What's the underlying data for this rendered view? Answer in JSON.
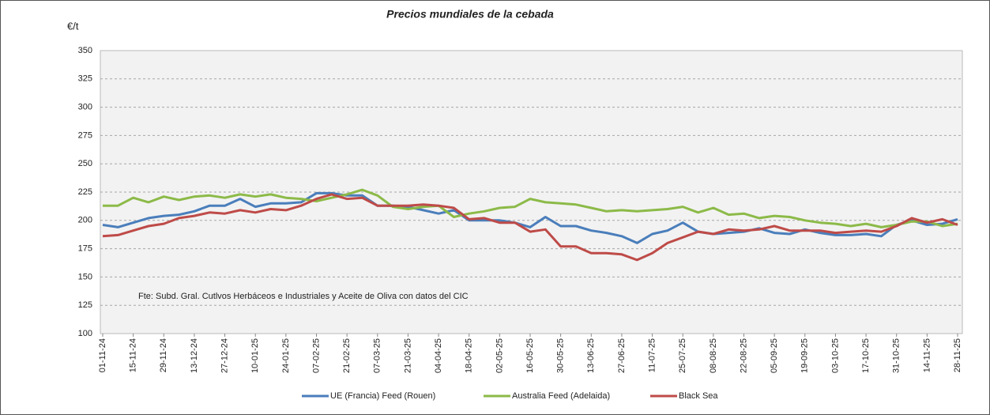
{
  "chart_data": {
    "type": "line",
    "title": "Precios mundiales de la cebada",
    "y_label": "€/t",
    "annotation": "Fte: Subd. Gral. Cutlvos Herbáceos e Industriales y Aceite de Oliva con datos del CIC",
    "categories": [
      "01-11-24",
      null,
      "15-11-24",
      null,
      "29-11-24",
      null,
      "13-12-24",
      null,
      "27-12-24",
      null,
      "10-01-25",
      null,
      "24-01-25",
      null,
      "07-02-25",
      null,
      "21-02-25",
      null,
      "07-03-25",
      null,
      "21-03-25",
      null,
      "04-04-25",
      null,
      "18-04-25",
      null,
      "02-05-25",
      null,
      "16-05-25",
      null,
      "30-05-25",
      null,
      "13-06-25",
      null,
      "27-06-25",
      null,
      "11-07-25",
      null,
      "25-07-25",
      null,
      "08-08-25",
      null,
      "22-08-25",
      null,
      "05-09-25",
      null,
      "19-09-25",
      null,
      "03-10-25",
      null,
      "17-10-25",
      null,
      "31-10-25",
      null,
      "14-11-25",
      null,
      "28-11-25"
    ],
    "series": [
      {
        "name": "UE (Francia) Feed (Rouen)",
        "color": "#4a7ebb",
        "values": [
          196,
          194,
          198,
          202,
          204,
          205,
          208,
          213,
          213,
          219,
          212,
          215,
          215,
          216,
          224,
          224,
          222,
          222,
          213,
          213,
          212,
          209,
          206,
          209,
          200,
          200,
          200,
          198,
          194,
          203,
          195,
          195,
          191,
          189,
          186,
          180,
          188,
          191,
          198,
          190,
          188,
          189,
          190,
          193,
          189,
          188,
          192,
          189,
          187,
          187,
          188,
          186,
          196,
          200,
          196,
          197,
          201
        ]
      },
      {
        "name": "Australia Feed (Adelaida)",
        "color": "#8cba48",
        "values": [
          213,
          213,
          220,
          216,
          221,
          218,
          221,
          222,
          220,
          223,
          221,
          223,
          220,
          219,
          217,
          220,
          223,
          227,
          222,
          212,
          210,
          212,
          213,
          203,
          206,
          208,
          211,
          212,
          219,
          216,
          215,
          214,
          211,
          208,
          209,
          208,
          209,
          210,
          212,
          207,
          211,
          205,
          206,
          202,
          204,
          203,
          200,
          198,
          197,
          195,
          197,
          194,
          196,
          199,
          199,
          195,
          197
        ]
      },
      {
        "name": "Black Sea",
        "color": "#be4b48",
        "values": [
          186,
          187,
          191,
          195,
          197,
          202,
          204,
          207,
          206,
          209,
          207,
          210,
          209,
          213,
          219,
          223,
          219,
          220,
          213,
          213,
          213,
          214,
          213,
          211,
          201,
          202,
          198,
          198,
          190,
          192,
          177,
          177,
          171,
          171,
          170,
          165,
          171,
          180,
          185,
          190,
          188,
          192,
          191,
          192,
          195,
          191,
          191,
          191,
          189,
          190,
          191,
          190,
          195,
          202,
          198,
          201,
          196
        ]
      }
    ],
    "ylim": [
      100,
      350
    ],
    "yticks": [
      100,
      125,
      150,
      175,
      200,
      225,
      250,
      275,
      300,
      325,
      350
    ],
    "grid": true
  }
}
